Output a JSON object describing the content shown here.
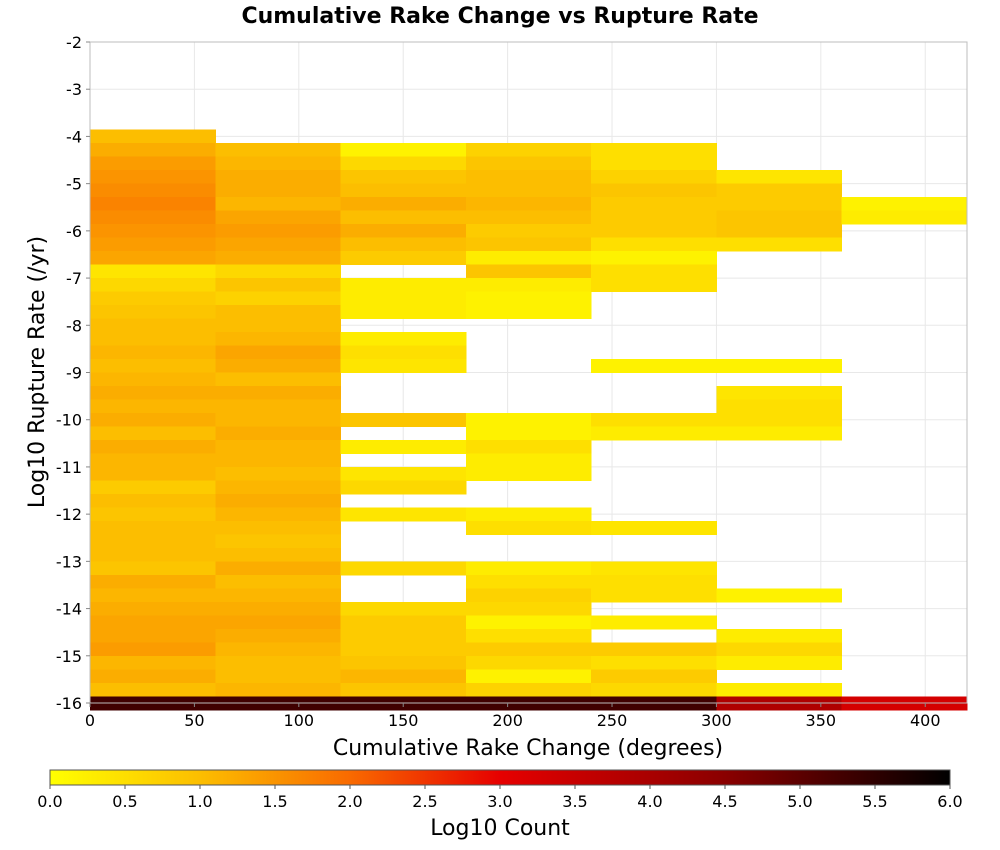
{
  "chart_data": {
    "type": "heatmap",
    "title": "Cumulative Rake Change vs Rupture Rate",
    "xlabel": "Cumulative Rake Change (degrees)",
    "ylabel": "Log10 Rupture Rate (/yr)",
    "colorbar_label": "Log10 Count",
    "xlim": [
      0,
      420
    ],
    "ylim": [
      -16,
      -2
    ],
    "x_ticks": [
      0,
      50,
      100,
      150,
      200,
      250,
      300,
      350,
      400
    ],
    "y_ticks": [
      -2,
      -3,
      -4,
      -5,
      -6,
      -7,
      -8,
      -9,
      -10,
      -11,
      -12,
      -13,
      -14,
      -15,
      -16
    ],
    "colorbar_range": [
      0.0,
      6.0
    ],
    "colorbar_ticks": [
      "0.0",
      "0.5",
      "1.0",
      "1.5",
      "2.0",
      "2.5",
      "3.0",
      "3.5",
      "4.0",
      "4.5",
      "5.0",
      "5.5",
      "6.0"
    ],
    "colormap_stops": [
      {
        "value": 0.0,
        "color": "#ffff00"
      },
      {
        "value": 1.0,
        "color": "#fcbe00"
      },
      {
        "value": 2.0,
        "color": "#f96a00"
      },
      {
        "value": 3.0,
        "color": "#e60000"
      },
      {
        "value": 4.5,
        "color": "#8a0000"
      },
      {
        "value": 6.0,
        "color": "#000000"
      }
    ],
    "x_bin_width": 60,
    "y_bin_height": 0.286,
    "grid": true,
    "columns": [
      {
        "x_start": 0,
        "cells": [
          [
            -3.857,
            1.0
          ],
          [
            -4.143,
            1.2
          ],
          [
            -4.429,
            1.4
          ],
          [
            -4.714,
            1.5
          ],
          [
            -5.0,
            1.6
          ],
          [
            -5.286,
            1.7
          ],
          [
            -5.571,
            1.6
          ],
          [
            -5.857,
            1.5
          ],
          [
            -6.143,
            1.4
          ],
          [
            -6.429,
            1.3
          ],
          [
            -6.714,
            0.4
          ],
          [
            -7.0,
            0.6
          ],
          [
            -7.286,
            0.8
          ],
          [
            -7.571,
            0.9
          ],
          [
            -7.857,
            1.0
          ],
          [
            -8.143,
            1.0
          ],
          [
            -8.429,
            1.1
          ],
          [
            -8.714,
            1.0
          ],
          [
            -9.0,
            1.1
          ],
          [
            -9.286,
            1.2
          ],
          [
            -9.571,
            1.1
          ],
          [
            -9.857,
            1.2
          ],
          [
            -10.143,
            1.0
          ],
          [
            -10.429,
            1.2
          ],
          [
            -10.714,
            1.1
          ],
          [
            -11.0,
            1.1
          ],
          [
            -11.286,
            0.8
          ],
          [
            -11.571,
            1.0
          ],
          [
            -11.857,
            0.9
          ],
          [
            -12.143,
            1.0
          ],
          [
            -12.429,
            1.0
          ],
          [
            -12.714,
            1.0
          ],
          [
            -13.0,
            0.9
          ],
          [
            -13.286,
            1.2
          ],
          [
            -13.571,
            1.1
          ],
          [
            -13.857,
            1.2
          ],
          [
            -14.143,
            1.3
          ],
          [
            -14.429,
            1.3
          ],
          [
            -14.714,
            1.4
          ],
          [
            -15.0,
            1.1
          ],
          [
            -15.286,
            1.2
          ],
          [
            -15.571,
            1.0
          ],
          [
            -15.857,
            5.3
          ]
        ]
      },
      {
        "x_start": 60,
        "cells": [
          [
            -4.143,
            1.0
          ],
          [
            -4.429,
            1.1
          ],
          [
            -4.714,
            1.2
          ],
          [
            -5.0,
            1.2
          ],
          [
            -5.286,
            1.1
          ],
          [
            -5.571,
            1.3
          ],
          [
            -5.857,
            1.4
          ],
          [
            -6.143,
            1.3
          ],
          [
            -6.429,
            1.2
          ],
          [
            -6.714,
            0.6
          ],
          [
            -7.0,
            0.9
          ],
          [
            -7.286,
            0.7
          ],
          [
            -7.571,
            1.0
          ],
          [
            -7.857,
            1.0
          ],
          [
            -8.143,
            1.1
          ],
          [
            -8.429,
            1.3
          ],
          [
            -8.714,
            1.2
          ],
          [
            -9.0,
            1.0
          ],
          [
            -9.286,
            1.2
          ],
          [
            -9.571,
            1.1
          ],
          [
            -9.857,
            1.1
          ],
          [
            -10.143,
            1.2
          ],
          [
            -10.429,
            1.1
          ],
          [
            -10.714,
            1.1
          ],
          [
            -11.0,
            1.0
          ],
          [
            -11.286,
            1.1
          ],
          [
            -11.571,
            1.2
          ],
          [
            -11.857,
            1.1
          ],
          [
            -12.143,
            1.0
          ],
          [
            -12.429,
            0.9
          ],
          [
            -12.714,
            1.0
          ],
          [
            -13.0,
            1.2
          ],
          [
            -13.286,
            1.0
          ],
          [
            -13.571,
            1.1
          ],
          [
            -13.857,
            1.2
          ],
          [
            -14.143,
            1.3
          ],
          [
            -14.429,
            1.2
          ],
          [
            -14.714,
            1.1
          ],
          [
            -15.0,
            1.0
          ],
          [
            -15.286,
            1.0
          ],
          [
            -15.571,
            1.1
          ],
          [
            -15.857,
            5.3
          ]
        ]
      },
      {
        "x_start": 120,
        "cells": [
          [
            -4.143,
            0.2
          ],
          [
            -4.429,
            0.6
          ],
          [
            -4.714,
            0.9
          ],
          [
            -5.0,
            1.0
          ],
          [
            -5.286,
            1.2
          ],
          [
            -5.571,
            1.0
          ],
          [
            -5.857,
            1.2
          ],
          [
            -6.143,
            1.0
          ],
          [
            -6.429,
            0.8
          ],
          [
            -7.0,
            0.3
          ],
          [
            -7.286,
            0.3
          ],
          [
            -7.571,
            0.3
          ],
          [
            -8.143,
            0.3
          ],
          [
            -8.429,
            0.5
          ],
          [
            -8.714,
            0.4
          ],
          [
            -9.857,
            0.9
          ],
          [
            -10.429,
            0.3
          ],
          [
            -11.0,
            0.4
          ],
          [
            -11.286,
            0.6
          ],
          [
            -11.857,
            0.4
          ],
          [
            -13.0,
            0.6
          ],
          [
            -13.857,
            0.6
          ],
          [
            -14.143,
            0.8
          ],
          [
            -14.429,
            0.8
          ],
          [
            -14.714,
            0.8
          ],
          [
            -15.0,
            0.9
          ],
          [
            -15.286,
            1.1
          ],
          [
            -15.571,
            0.9
          ],
          [
            -15.857,
            5.3
          ]
        ]
      },
      {
        "x_start": 180,
        "cells": [
          [
            -4.143,
            0.7
          ],
          [
            -4.429,
            0.9
          ],
          [
            -4.714,
            1.0
          ],
          [
            -5.0,
            1.0
          ],
          [
            -5.286,
            1.1
          ],
          [
            -5.571,
            1.0
          ],
          [
            -5.857,
            0.8
          ],
          [
            -6.143,
            0.9
          ],
          [
            -6.429,
            0.3
          ],
          [
            -6.714,
            0.9
          ],
          [
            -7.0,
            0.3
          ],
          [
            -7.286,
            0.2
          ],
          [
            -7.571,
            0.2
          ],
          [
            -9.857,
            0.2
          ],
          [
            -10.143,
            0.2
          ],
          [
            -10.429,
            0.5
          ],
          [
            -10.714,
            0.3
          ],
          [
            -11.0,
            0.3
          ],
          [
            -11.857,
            0.3
          ],
          [
            -12.143,
            0.5
          ],
          [
            -13.0,
            0.3
          ],
          [
            -13.286,
            0.5
          ],
          [
            -13.571,
            0.7
          ],
          [
            -13.857,
            0.6
          ],
          [
            -14.143,
            0.2
          ],
          [
            -14.429,
            0.5
          ],
          [
            -14.714,
            0.8
          ],
          [
            -15.0,
            0.6
          ],
          [
            -15.286,
            0.2
          ],
          [
            -15.571,
            0.7
          ],
          [
            -15.857,
            5.3
          ]
        ]
      },
      {
        "x_start": 240,
        "cells": [
          [
            -4.143,
            0.5
          ],
          [
            -4.429,
            0.5
          ],
          [
            -4.714,
            0.7
          ],
          [
            -5.0,
            0.9
          ],
          [
            -5.286,
            0.8
          ],
          [
            -5.571,
            0.8
          ],
          [
            -5.857,
            0.8
          ],
          [
            -6.143,
            0.5
          ],
          [
            -6.429,
            0.2
          ],
          [
            -6.714,
            0.5
          ],
          [
            -7.0,
            0.5
          ],
          [
            -8.714,
            0.2
          ],
          [
            -9.857,
            0.5
          ],
          [
            -10.143,
            0.3
          ],
          [
            -12.143,
            0.4
          ],
          [
            -13.0,
            0.4
          ],
          [
            -13.286,
            0.5
          ],
          [
            -13.571,
            0.5
          ],
          [
            -14.143,
            0.3
          ],
          [
            -14.714,
            0.8
          ],
          [
            -15.0,
            0.5
          ],
          [
            -15.286,
            0.8
          ],
          [
            -15.571,
            0.6
          ],
          [
            -15.857,
            5.3
          ]
        ]
      },
      {
        "x_start": 300,
        "cells": [
          [
            -4.714,
            0.4
          ],
          [
            -5.0,
            0.8
          ],
          [
            -5.286,
            0.8
          ],
          [
            -5.571,
            0.9
          ],
          [
            -5.857,
            0.9
          ],
          [
            -6.143,
            0.5
          ],
          [
            -8.714,
            0.2
          ],
          [
            -9.286,
            0.4
          ],
          [
            -9.571,
            0.5
          ],
          [
            -9.857,
            0.5
          ],
          [
            -10.143,
            0.3
          ],
          [
            -13.571,
            0.2
          ],
          [
            -14.429,
            0.3
          ],
          [
            -14.714,
            0.6
          ],
          [
            -15.0,
            0.3
          ],
          [
            -15.571,
            0.3
          ],
          [
            -15.857,
            3.9
          ]
        ]
      },
      {
        "x_start": 360,
        "cells": [
          [
            -5.286,
            0.2
          ],
          [
            -5.571,
            0.3
          ],
          [
            -15.857,
            3.3
          ]
        ]
      }
    ]
  }
}
